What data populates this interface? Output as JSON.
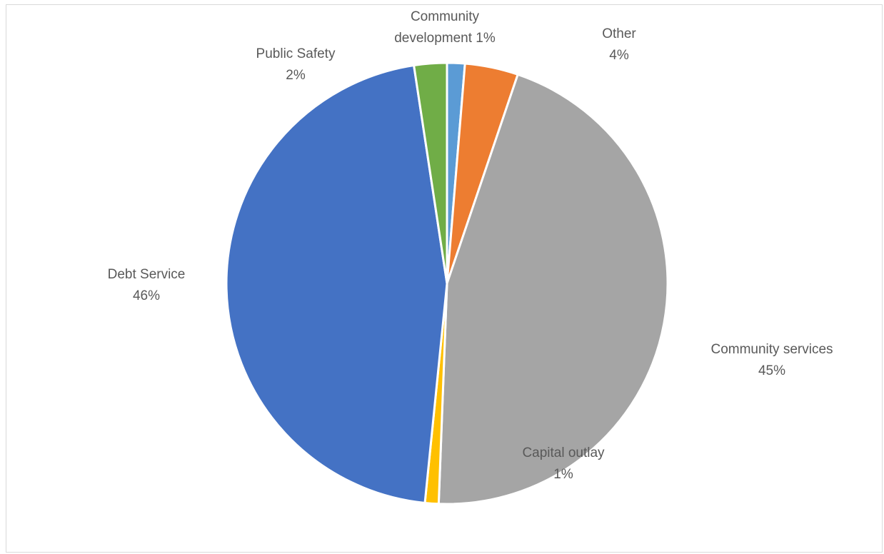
{
  "chart_data": {
    "type": "pie",
    "title": "",
    "start_angle_deg": 0,
    "direction": "clockwise",
    "slices": [
      {
        "label": "Community development",
        "value_label": "1%",
        "value": 1.3,
        "color": "#5b9bd5"
      },
      {
        "label": "Other",
        "value_label": "4%",
        "value": 3.9,
        "color": "#ed7d31"
      },
      {
        "label": "Community services",
        "value_label": "45%",
        "value": 45.4,
        "color": "#a5a5a5"
      },
      {
        "label": "Capital outlay",
        "value_label": "1%",
        "value": 1.0,
        "color": "#ffc000"
      },
      {
        "label": "Debt Service",
        "value_label": "46%",
        "value": 46.0,
        "color": "#4472c4"
      },
      {
        "label": "Public Safety",
        "value_label": "2%",
        "value": 2.4,
        "color": "#70ad47"
      }
    ],
    "labels": [
      {
        "lines": [
          "Community",
          "development 1%"
        ]
      },
      {
        "lines": [
          "Other",
          "4%"
        ]
      },
      {
        "lines": [
          "Community services",
          "45%"
        ]
      },
      {
        "lines": [
          "Capital outlay",
          "1%"
        ]
      },
      {
        "lines": [
          "Debt Service",
          "46%"
        ]
      },
      {
        "lines": [
          "Public Safety",
          "2%"
        ]
      }
    ],
    "legend": "none",
    "slice_border_color": "#ffffff"
  }
}
